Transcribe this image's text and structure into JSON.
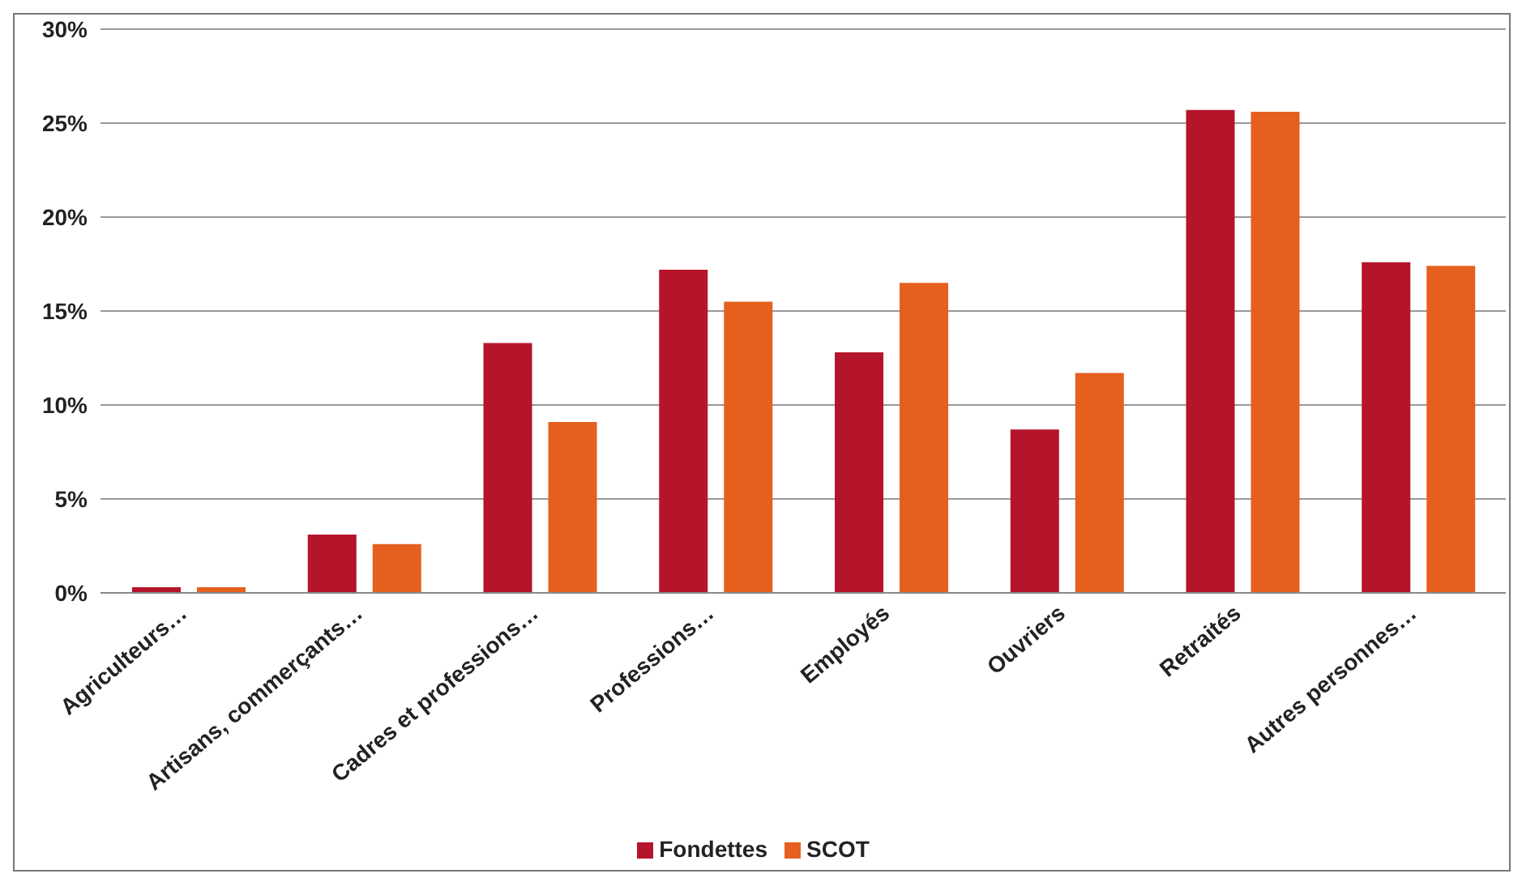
{
  "chart_data": {
    "type": "bar",
    "categories": [
      "Agriculteurs…",
      "Artisans, commerçants…",
      "Cadres et professions…",
      "Professions…",
      "Employés",
      "Ouvriers",
      "Retraités",
      "Autres personnes…"
    ],
    "series": [
      {
        "name": "Fondettes",
        "color": "#b5152b",
        "values": [
          0.3,
          3.1,
          13.3,
          17.2,
          12.8,
          8.7,
          25.7,
          17.6
        ]
      },
      {
        "name": "SCOT",
        "color": "#e5601e",
        "values": [
          0.3,
          2.6,
          9.1,
          15.5,
          16.5,
          11.7,
          25.6,
          17.4
        ]
      }
    ],
    "ylim": [
      0,
      30
    ],
    "yticks": [
      {
        "value": 0,
        "label": "0%"
      },
      {
        "value": 5,
        "label": "5%"
      },
      {
        "value": 10,
        "label": "10%"
      },
      {
        "value": 15,
        "label": "15%"
      },
      {
        "value": 20,
        "label": "20%"
      },
      {
        "value": 25,
        "label": "25%"
      },
      {
        "value": 30,
        "label": "30%"
      }
    ],
    "grid": "y",
    "legend": "bottom"
  }
}
